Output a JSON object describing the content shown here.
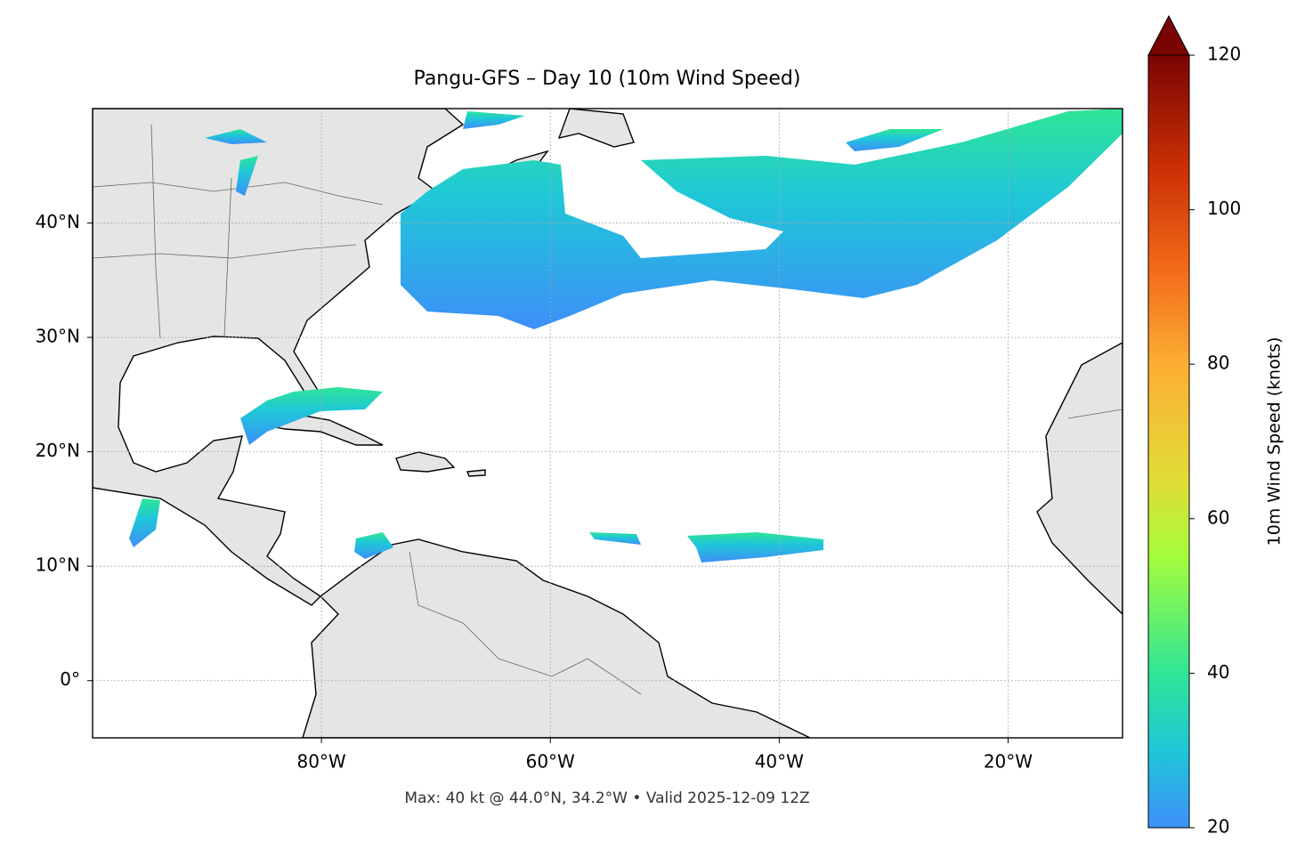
{
  "map": {
    "title": "Pangu-GFS – Day 10 (10m Wind Speed)",
    "xlim": [
      -100,
      -10
    ],
    "ylim": [
      -5,
      50
    ],
    "xticks": [
      {
        "value": -80,
        "label": "80°W"
      },
      {
        "value": -60,
        "label": "60°W"
      },
      {
        "value": -40,
        "label": "40°W"
      },
      {
        "value": -20,
        "label": "20°W"
      }
    ],
    "yticks": [
      {
        "value": 0,
        "label": "0°"
      },
      {
        "value": 10,
        "label": "10°N"
      },
      {
        "value": 20,
        "label": "20°N"
      },
      {
        "value": 30,
        "label": "30°N"
      },
      {
        "value": 40,
        "label": "40°N"
      }
    ],
    "grid": true,
    "footer": "Max: 40 kt @ 44.0°N, 34.2°W • Valid 2025-12-09 12Z",
    "colorbar": {
      "label": "10m Wind Speed (knots)",
      "lim": [
        20,
        120
      ],
      "ticks": [
        20,
        40,
        60,
        80,
        100,
        120
      ],
      "extend": "max"
    }
  }
}
